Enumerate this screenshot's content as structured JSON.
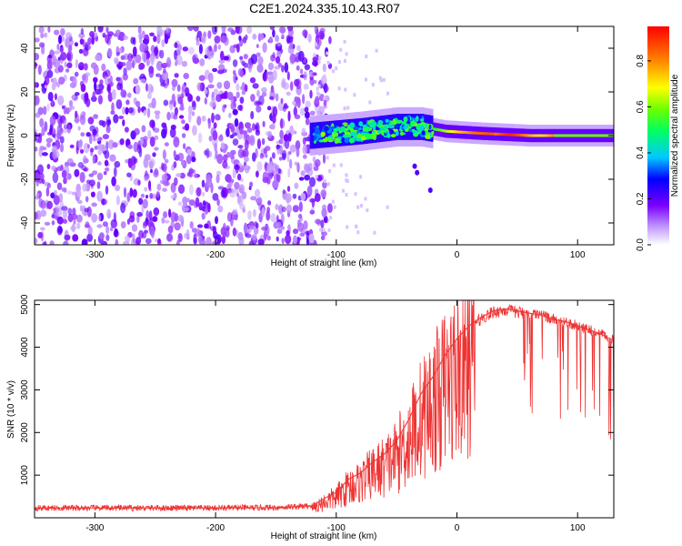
{
  "title": "C2E1.2024.335.10.43.R07",
  "chart_data": [
    {
      "type": "heatmap",
      "xlabel": "Height of straight line (km)",
      "ylabel": "Frequency (Hz)",
      "xlim": [
        -350,
        130
      ],
      "ylim": [
        -50,
        50
      ],
      "xticks": [
        -300,
        -200,
        -100,
        0,
        100
      ],
      "yticks": [
        -40,
        -20,
        0,
        20,
        40
      ],
      "colorbar": {
        "label": "Normalized spectral amplitude",
        "range": [
          0.0,
          0.95
        ],
        "ticks": [
          0.0,
          0.2,
          0.4,
          0.6,
          0.8
        ]
      },
      "regions": [
        {
          "x_range": [
            -350,
            -115
          ],
          "y_range": [
            -50,
            50
          ],
          "amplitude": 0.1
        },
        {
          "x_range": [
            -120,
            -20
          ],
          "y_range": [
            -5,
            7
          ],
          "amplitude": 0.45
        },
        {
          "x_range": [
            -20,
            130
          ],
          "y_range": [
            -2,
            2
          ],
          "amplitude": 0.85
        }
      ],
      "line": {
        "x": [
          -120,
          -80,
          -50,
          -30,
          -10,
          20,
          60,
          130
        ],
        "y": [
          0,
          2,
          4,
          4,
          2,
          1,
          0,
          0
        ]
      },
      "grid": false
    },
    {
      "type": "line",
      "xlabel": "Height of straight line (km)",
      "ylabel": "SNR (10 * v/v)",
      "xlim": [
        -350,
        130
      ],
      "ylim": [
        0,
        5100
      ],
      "xticks": [
        -300,
        -200,
        -100,
        0,
        100
      ],
      "yticks": [
        1000,
        2000,
        3000,
        4000,
        5000
      ],
      "color": "#ee3333",
      "series": [
        {
          "x": [
            -350,
            -300,
            -250,
            -200,
            -150,
            -120,
            -110,
            -100,
            -90,
            -80,
            -70,
            -60,
            -50,
            -40,
            -30,
            -20,
            -10,
            0,
            10,
            20,
            30,
            40,
            50,
            60,
            70,
            80,
            90,
            100,
            110,
            120,
            130
          ],
          "y": [
            230,
            230,
            230,
            230,
            240,
            280,
            450,
            600,
            900,
            1050,
            1300,
            1500,
            1800,
            2300,
            2900,
            3300,
            3800,
            4200,
            4500,
            4700,
            4850,
            4900,
            4850,
            4800,
            4750,
            4650,
            4600,
            4500,
            4400,
            4300,
            4150
          ]
        }
      ],
      "grid": false
    }
  ]
}
